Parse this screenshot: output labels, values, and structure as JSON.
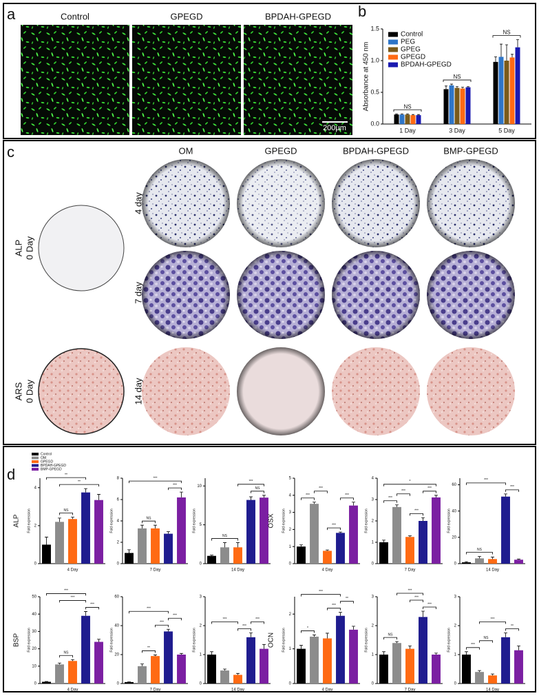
{
  "panel_labels": [
    "a",
    "b",
    "c",
    "d"
  ],
  "panel_a": {
    "images": [
      "Control",
      "GPEGD",
      "BPDAH-GPEGD"
    ],
    "scale_bar": "200μm"
  },
  "panel_c": {
    "columns": [
      "OM",
      "GPEGD",
      "BPDAH-GPEGD",
      "BMP-GPEGD"
    ],
    "rows": [
      "4 day",
      "7 day",
      "14 day"
    ],
    "baseline": [
      [
        "ALP",
        "0 Day"
      ],
      [
        "ARS",
        "0 Day"
      ]
    ]
  },
  "panel_d": {
    "legend": [
      "Control",
      "OM",
      "GPEGD",
      "BPDAH-GPEGD",
      "BMP-GPEGD"
    ],
    "colors": [
      "#000000",
      "#8c8c8c",
      "#ff6a13",
      "#1f1c8f",
      "#7b1fa2"
    ]
  },
  "chart_data": [
    {
      "type": "bar",
      "ylabel": "Absorbance at 450 nm",
      "categories": [
        "1 Day",
        "3 Day",
        "5 Day"
      ],
      "series": [
        {
          "name": "Control",
          "color": "#000000",
          "values": [
            0.15,
            0.55,
            0.98
          ],
          "errors": [
            0.01,
            0.05,
            0.08
          ]
        },
        {
          "name": "PEG",
          "color": "#2e75c8",
          "values": [
            0.15,
            0.61,
            1.06
          ],
          "errors": [
            0.01,
            0.02,
            0.2
          ]
        },
        {
          "name": "GPEG",
          "color": "#7a5a1a",
          "values": [
            0.15,
            0.57,
            1.0
          ],
          "errors": [
            0.01,
            0.02,
            0.25
          ]
        },
        {
          "name": "GPEGD",
          "color": "#ff6a13",
          "values": [
            0.14,
            0.56,
            1.05
          ],
          "errors": [
            0.01,
            0.02,
            0.05
          ]
        },
        {
          "name": "BPDAH-GPEGD",
          "color": "#1a1ab0",
          "values": [
            0.14,
            0.58,
            1.21
          ],
          "errors": [
            0.01,
            0.01,
            0.12
          ]
        }
      ],
      "group_annotations": [
        "NS",
        "NS",
        "NS"
      ],
      "ylim": [
        0,
        1.5
      ],
      "yticks": [
        {
          "value": 0,
          "label": "0.0"
        },
        {
          "value": 0.5,
          "label": "0.5"
        },
        {
          "value": 1,
          "label": "1.0"
        },
        {
          "value": 1.5,
          "label": "1.5"
        }
      ]
    },
    {
      "type": "bar",
      "gene": "ALP",
      "xlabel": "4 Day",
      "ylabel": "Fold expression",
      "values": [
        1.0,
        2.2,
        2.35,
        3.75,
        3.35
      ],
      "errors": [
        0.4,
        0.2,
        0.1,
        0.2,
        0.3
      ],
      "ylim": [
        0,
        4.5
      ],
      "yticks": [
        0,
        2,
        4
      ],
      "annotations": [
        {
          "text": "NS",
          "between": [
            1,
            2
          ]
        },
        {
          "text": "**",
          "between": [
            1,
            4
          ]
        },
        {
          "text": "**",
          "between": [
            0,
            3
          ]
        }
      ]
    },
    {
      "type": "bar",
      "xlabel": "7 Day",
      "ylabel": "Fold expression",
      "values": [
        1.0,
        3.3,
        3.3,
        2.8,
        6.2
      ],
      "errors": [
        0.3,
        0.3,
        0.3,
        0.2,
        0.5
      ],
      "ylim": [
        0,
        8
      ],
      "yticks": [
        0,
        2,
        4,
        6,
        8
      ],
      "annotations": [
        {
          "text": "NS",
          "between": [
            1,
            2
          ]
        },
        {
          "text": "***",
          "between": [
            3,
            4
          ]
        },
        {
          "text": "***",
          "between": [
            0,
            4
          ]
        }
      ]
    },
    {
      "type": "bar",
      "xlabel": "14 Day",
      "ylabel": "Fold expression",
      "values": [
        1.0,
        2.1,
        2.1,
        8.2,
        8.5
      ],
      "errors": [
        0.1,
        0.6,
        0.6,
        0.4,
        0.3
      ],
      "ylim": [
        0,
        11
      ],
      "yticks": [
        0,
        5,
        10
      ],
      "annotations": [
        {
          "text": "NS",
          "between": [
            0,
            2
          ]
        },
        {
          "text": "NS",
          "between": [
            3,
            4
          ]
        },
        {
          "text": "***",
          "between": [
            2,
            4
          ]
        }
      ]
    },
    {
      "type": "bar",
      "gene": "OSX",
      "xlabel": "4 Day",
      "ylabel": "Fold expression",
      "values": [
        1.0,
        3.5,
        0.75,
        1.8,
        3.4
      ],
      "errors": [
        0.1,
        0.1,
        0.05,
        0.05,
        0.2
      ],
      "ylim": [
        0,
        5
      ],
      "yticks": [
        0,
        1,
        2,
        3,
        4,
        5
      ],
      "annotations": [
        {
          "text": "***",
          "between": [
            2,
            3
          ]
        },
        {
          "text": "***",
          "between": [
            0,
            1
          ]
        },
        {
          "text": "***",
          "between": [
            1,
            2
          ]
        },
        {
          "text": "***",
          "between": [
            3,
            4
          ]
        }
      ]
    },
    {
      "type": "bar",
      "xlabel": "7 Day",
      "ylabel": "Fold expression",
      "values": [
        1.0,
        2.65,
        1.25,
        2.0,
        3.1
      ],
      "errors": [
        0.1,
        0.1,
        0.05,
        0.15,
        0.1
      ],
      "ylim": [
        0,
        4
      ],
      "yticks": [
        0,
        1,
        2,
        3,
        4
      ],
      "annotations": [
        {
          "text": "***",
          "between": [
            2,
            3
          ]
        },
        {
          "text": "***",
          "between": [
            0,
            1
          ]
        },
        {
          "text": "***",
          "between": [
            1,
            2
          ]
        },
        {
          "text": "***",
          "between": [
            3,
            4
          ]
        },
        {
          "text": "*",
          "between": [
            0,
            4
          ]
        }
      ]
    },
    {
      "type": "bar",
      "xlabel": "14 Day",
      "ylabel": "Fold expression",
      "values": [
        1.0,
        4.0,
        3.5,
        51.0,
        3.0
      ],
      "errors": [
        0.5,
        1.5,
        1.5,
        2.0,
        0.5
      ],
      "ylim": [
        0,
        65
      ],
      "yticks": [
        0,
        20,
        40,
        60
      ],
      "annotations": [
        {
          "text": "NS",
          "between": [
            0,
            2
          ]
        },
        {
          "text": "***",
          "between": [
            3,
            4
          ]
        },
        {
          "text": "***",
          "between": [
            0,
            3
          ]
        }
      ]
    },
    {
      "type": "bar",
      "gene": "BSP",
      "xlabel": "4 Day",
      "ylabel": "Fold expression",
      "values": [
        1.0,
        11.0,
        13.0,
        39.0,
        24.0
      ],
      "errors": [
        0.2,
        0.8,
        0.8,
        2.5,
        1.5
      ],
      "ylim": [
        0,
        50
      ],
      "yticks": [
        0,
        10,
        20,
        30,
        40,
        50
      ],
      "annotations": [
        {
          "text": "NS",
          "between": [
            1,
            2
          ]
        },
        {
          "text": "***",
          "between": [
            3,
            4
          ]
        },
        {
          "text": "***",
          "between": [
            1,
            3
          ]
        },
        {
          "text": "***",
          "between": [
            0,
            3
          ]
        }
      ]
    },
    {
      "type": "bar",
      "xlabel": "7 Day",
      "ylabel": "Fold expression",
      "values": [
        1.0,
        12.0,
        19.0,
        36.0,
        20.0
      ],
      "errors": [
        0.2,
        1.5,
        0.8,
        1.5,
        0.8
      ],
      "ylim": [
        0,
        60
      ],
      "yticks": [
        0,
        20,
        40,
        60
      ],
      "annotations": [
        {
          "text": "**",
          "between": [
            1,
            2
          ]
        },
        {
          "text": "***",
          "between": [
            2,
            3
          ]
        },
        {
          "text": "***",
          "between": [
            3,
            4
          ]
        },
        {
          "text": "***",
          "between": [
            0,
            3
          ]
        }
      ]
    },
    {
      "type": "bar",
      "xlabel": "14 Day",
      "ylabel": "Fold expression",
      "values": [
        1.0,
        0.45,
        0.3,
        1.6,
        1.2
      ],
      "errors": [
        0.1,
        0.05,
        0.05,
        0.15,
        0.15
      ],
      "ylim": [
        0,
        3
      ],
      "yticks": [
        0,
        1,
        2,
        3
      ],
      "annotations": [
        {
          "text": "***",
          "between": [
            2,
            3
          ]
        },
        {
          "text": "***",
          "between": [
            0,
            2
          ]
        },
        {
          "text": "***",
          "between": [
            3,
            4
          ]
        }
      ]
    },
    {
      "type": "bar",
      "gene": "OCN",
      "xlabel": "4 Day",
      "ylabel": "Fold expression",
      "values": [
        1.0,
        1.35,
        1.3,
        1.95,
        1.55
      ],
      "errors": [
        0.1,
        0.05,
        0.15,
        0.1,
        0.1
      ],
      "ylim": [
        0,
        2.5
      ],
      "yticks": [
        0,
        1,
        2
      ],
      "annotations": [
        {
          "text": "*",
          "between": [
            0,
            1
          ]
        },
        {
          "text": "***",
          "between": [
            2,
            3
          ]
        },
        {
          "text": "**",
          "between": [
            3,
            4
          ]
        },
        {
          "text": "***",
          "between": [
            0,
            3
          ]
        }
      ]
    },
    {
      "type": "bar",
      "xlabel": "7 Day",
      "ylabel": "Fold expression",
      "values": [
        1.0,
        1.4,
        1.2,
        2.3,
        1.0
      ],
      "errors": [
        0.1,
        0.05,
        0.1,
        0.2,
        0.05
      ],
      "ylim": [
        0,
        3
      ],
      "yticks": [
        0,
        1,
        2,
        3
      ],
      "annotations": [
        {
          "text": "NS",
          "between": [
            0,
            1
          ]
        },
        {
          "text": "***",
          "between": [
            3,
            4
          ]
        },
        {
          "text": "***",
          "between": [
            2,
            3
          ]
        },
        {
          "text": "***",
          "between": [
            1,
            3
          ]
        }
      ]
    },
    {
      "type": "bar",
      "xlabel": "14 Day",
      "ylabel": "Fold expression",
      "values": [
        1.0,
        0.4,
        0.28,
        1.6,
        1.15
      ],
      "errors": [
        0.1,
        0.05,
        0.05,
        0.15,
        0.15
      ],
      "ylim": [
        0,
        3
      ],
      "yticks": [
        0,
        1,
        2,
        3
      ],
      "annotations": [
        {
          "text": "***",
          "between": [
            0,
            1
          ]
        },
        {
          "text": "NS",
          "between": [
            1,
            2
          ]
        },
        {
          "text": "**",
          "between": [
            3,
            4
          ]
        },
        {
          "text": "***",
          "between": [
            1,
            3
          ]
        }
      ]
    }
  ]
}
